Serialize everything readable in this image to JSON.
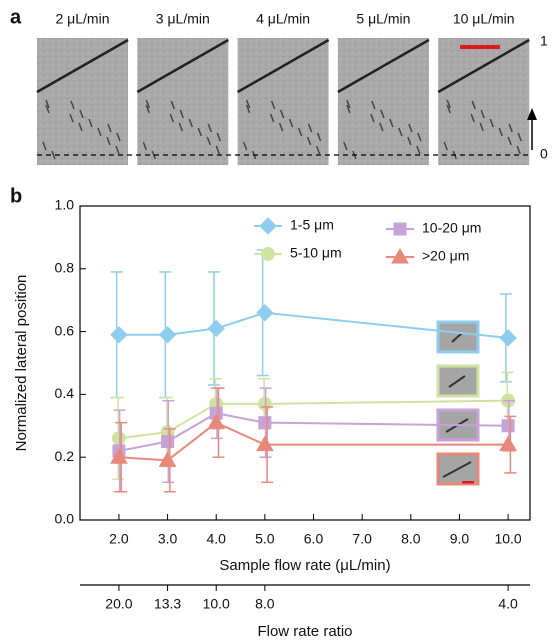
{
  "panel_a": {
    "label": "a",
    "images": [
      "2 μL/min",
      "3 μL/min",
      "4 μL/min",
      "5 μL/min",
      "10 μL/min"
    ],
    "scale_top": "1",
    "scale_bottom": "0"
  },
  "chart_data": {
    "type": "line",
    "panel_label": "b",
    "xlabel": "Sample flow rate (μL/min)",
    "ylabel": "Normalized lateral position",
    "x": [
      2,
      3,
      4,
      5,
      10
    ],
    "xlim": [
      1.2,
      10.45
    ],
    "ylim": [
      0,
      1
    ],
    "xticks": [
      {
        "value": 2,
        "label": "2.0"
      },
      {
        "value": 3,
        "label": "3.0"
      },
      {
        "value": 4,
        "label": "4.0"
      },
      {
        "value": 5,
        "label": "5.0"
      },
      {
        "value": 6,
        "label": "6.0"
      },
      {
        "value": 7,
        "label": "7.0"
      },
      {
        "value": 8,
        "label": "8.0"
      },
      {
        "value": 9,
        "label": "9.0"
      },
      {
        "value": 10,
        "label": "10.0"
      }
    ],
    "yticks": [
      {
        "value": 0,
        "label": "0.0"
      },
      {
        "value": 0.2,
        "label": "0.2"
      },
      {
        "value": 0.4,
        "label": "0.4"
      },
      {
        "value": 0.6,
        "label": "0.6"
      },
      {
        "value": 0.8,
        "label": "0.8"
      },
      {
        "value": 1,
        "label": "1.0"
      }
    ],
    "x2label": "Flow rate ratio",
    "x2ticks": [
      {
        "value": 2,
        "label": "20.0"
      },
      {
        "value": 3,
        "label": "13.3"
      },
      {
        "value": 4,
        "label": "10.0"
      },
      {
        "value": 5,
        "label": "8.0"
      },
      {
        "value": 10,
        "label": "4.0"
      }
    ],
    "series": [
      {
        "name": "1-5 μm",
        "color": "#8fcdee",
        "marker": "diamond",
        "values": [
          0.59,
          0.59,
          0.61,
          0.66,
          0.58
        ],
        "errors": [
          0.2,
          0.2,
          0.18,
          0.2,
          0.14
        ]
      },
      {
        "name": "5-10 μm",
        "color": "#cfe2a0",
        "marker": "circle",
        "values": [
          0.26,
          0.28,
          0.37,
          0.37,
          0.38
        ],
        "errors": [
          0.13,
          0.11,
          0.08,
          0.08,
          0.09
        ]
      },
      {
        "name": "10-20 μm",
        "color": "#c6a2d8",
        "marker": "square",
        "values": [
          0.22,
          0.25,
          0.34,
          0.31,
          0.3
        ],
        "errors": [
          0.13,
          0.13,
          0.08,
          0.11,
          0.08
        ]
      },
      {
        "name": ">20 μm",
        "color": "#e8887a",
        "marker": "triangle",
        "values": [
          0.2,
          0.19,
          0.31,
          0.24,
          0.24
        ],
        "errors": [
          0.11,
          0.1,
          0.11,
          0.12,
          0.09
        ]
      }
    ]
  }
}
